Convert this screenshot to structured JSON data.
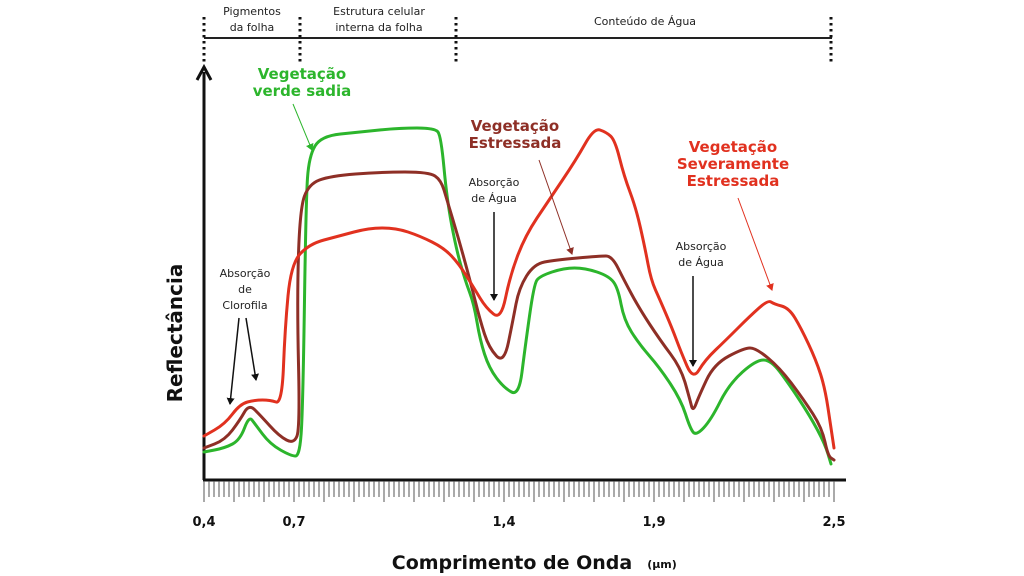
{
  "regions": [
    {
      "line1": "Pigmentos",
      "line2": "da folha"
    },
    {
      "line1": "Estrutura celular",
      "line2": "interna da folha"
    },
    {
      "line1": "Conteúdo de Água",
      "line2": ""
    }
  ],
  "annotations": {
    "chlorophyll": {
      "line1": "Absorção",
      "line2": "de",
      "line3": "Clorofila"
    },
    "water1": {
      "line1": "Absorção",
      "line2": "de Água"
    },
    "water2": {
      "line1": "Absorção",
      "line2": "de Água"
    }
  },
  "series_labels": {
    "healthy": {
      "line1": "Vegetação",
      "line2": "verde sadia"
    },
    "stressed": {
      "line1": "Vegetação",
      "line2": "Estressada"
    },
    "severe": {
      "line1": "Vegetação",
      "line2": "Severamente",
      "line3": "Estressada"
    }
  },
  "chart_data": {
    "type": "line",
    "xlabel": "Comprimento de Onda",
    "xunit": "(µm)",
    "ylabel": "Reflectância",
    "xlim": [
      0.4,
      2.5
    ],
    "ylim": [
      0,
      100
    ],
    "x_tick_labels": [
      "0,4",
      "0,7",
      "1,4",
      "1,9",
      "2,5"
    ],
    "x_ticks": [
      0.4,
      0.7,
      1.4,
      1.9,
      2.5
    ],
    "region_boundaries": [
      0.4,
      0.72,
      1.24,
      2.49
    ],
    "grid": false,
    "series": [
      {
        "name": "Vegetação verde sadia",
        "color": "#2cb52c",
        "points": [
          [
            0.4,
            7
          ],
          [
            0.47,
            8
          ],
          [
            0.52,
            10
          ],
          [
            0.55,
            16
          ],
          [
            0.57,
            14
          ],
          [
            0.62,
            9
          ],
          [
            0.69,
            6
          ],
          [
            0.72,
            6
          ],
          [
            0.73,
            20
          ],
          [
            0.74,
            70
          ],
          [
            0.75,
            81
          ],
          [
            0.79,
            86
          ],
          [
            0.92,
            87
          ],
          [
            1.05,
            88
          ],
          [
            1.17,
            88
          ],
          [
            1.19,
            86
          ],
          [
            1.21,
            70
          ],
          [
            1.24,
            58
          ],
          [
            1.27,
            50
          ],
          [
            1.3,
            44
          ],
          [
            1.32,
            35
          ],
          [
            1.35,
            28
          ],
          [
            1.4,
            23
          ],
          [
            1.45,
            21
          ],
          [
            1.47,
            33
          ],
          [
            1.5,
            49
          ],
          [
            1.52,
            51
          ],
          [
            1.6,
            53
          ],
          [
            1.67,
            53
          ],
          [
            1.75,
            51
          ],
          [
            1.78,
            48
          ],
          [
            1.8,
            40
          ],
          [
            1.85,
            34
          ],
          [
            1.92,
            28
          ],
          [
            1.99,
            20
          ],
          [
            2.02,
            13
          ],
          [
            2.04,
            11
          ],
          [
            2.09,
            15
          ],
          [
            2.15,
            24
          ],
          [
            2.24,
            30
          ],
          [
            2.29,
            30
          ],
          [
            2.35,
            24
          ],
          [
            2.42,
            16
          ],
          [
            2.47,
            9
          ],
          [
            2.49,
            4
          ]
        ]
      },
      {
        "name": "Vegetação Estressada",
        "color": "#8e2f26",
        "points": [
          [
            0.4,
            8
          ],
          [
            0.47,
            10
          ],
          [
            0.52,
            15
          ],
          [
            0.55,
            19
          ],
          [
            0.59,
            16
          ],
          [
            0.65,
            11
          ],
          [
            0.7,
            9
          ],
          [
            0.72,
            13
          ],
          [
            0.71,
            45
          ],
          [
            0.72,
            68
          ],
          [
            0.75,
            74
          ],
          [
            0.82,
            76
          ],
          [
            0.99,
            77
          ],
          [
            1.15,
            77
          ],
          [
            1.19,
            75
          ],
          [
            1.21,
            70
          ],
          [
            1.25,
            60
          ],
          [
            1.29,
            49
          ],
          [
            1.32,
            40
          ],
          [
            1.35,
            33
          ],
          [
            1.4,
            29
          ],
          [
            1.43,
            40
          ],
          [
            1.45,
            48
          ],
          [
            1.5,
            54
          ],
          [
            1.57,
            55
          ],
          [
            1.72,
            56
          ],
          [
            1.76,
            56
          ],
          [
            1.8,
            50
          ],
          [
            1.85,
            43
          ],
          [
            1.92,
            35
          ],
          [
            1.99,
            28
          ],
          [
            2.02,
            20
          ],
          [
            2.03,
            17
          ],
          [
            2.05,
            21
          ],
          [
            2.1,
            29
          ],
          [
            2.2,
            33
          ],
          [
            2.24,
            33
          ],
          [
            2.32,
            28
          ],
          [
            2.4,
            20
          ],
          [
            2.46,
            13
          ],
          [
            2.48,
            6
          ],
          [
            2.5,
            5
          ]
        ]
      },
      {
        "name": "Vegetação Severamente Estressada",
        "color": "#e1311f",
        "points": [
          [
            0.4,
            11
          ],
          [
            0.47,
            14
          ],
          [
            0.52,
            19
          ],
          [
            0.57,
            20
          ],
          [
            0.62,
            20
          ],
          [
            0.66,
            19
          ],
          [
            0.67,
            38
          ],
          [
            0.69,
            54
          ],
          [
            0.75,
            59
          ],
          [
            0.85,
            61
          ],
          [
            0.95,
            63
          ],
          [
            1.04,
            63
          ],
          [
            1.12,
            61
          ],
          [
            1.2,
            58
          ],
          [
            1.25,
            54
          ],
          [
            1.3,
            48
          ],
          [
            1.34,
            43
          ],
          [
            1.39,
            40
          ],
          [
            1.42,
            51
          ],
          [
            1.47,
            61
          ],
          [
            1.55,
            70
          ],
          [
            1.64,
            80
          ],
          [
            1.7,
            88
          ],
          [
            1.74,
            87
          ],
          [
            1.77,
            85
          ],
          [
            1.8,
            76
          ],
          [
            1.84,
            68
          ],
          [
            1.87,
            58
          ],
          [
            1.89,
            50
          ],
          [
            1.92,
            45
          ],
          [
            1.96,
            38
          ],
          [
            1.99,
            32
          ],
          [
            2.03,
            25
          ],
          [
            2.07,
            30
          ],
          [
            2.14,
            35
          ],
          [
            2.22,
            41
          ],
          [
            2.28,
            45
          ],
          [
            2.3,
            44
          ],
          [
            2.35,
            43
          ],
          [
            2.39,
            38
          ],
          [
            2.44,
            30
          ],
          [
            2.47,
            23
          ],
          [
            2.49,
            13
          ],
          [
            2.5,
            8
          ]
        ]
      }
    ]
  }
}
